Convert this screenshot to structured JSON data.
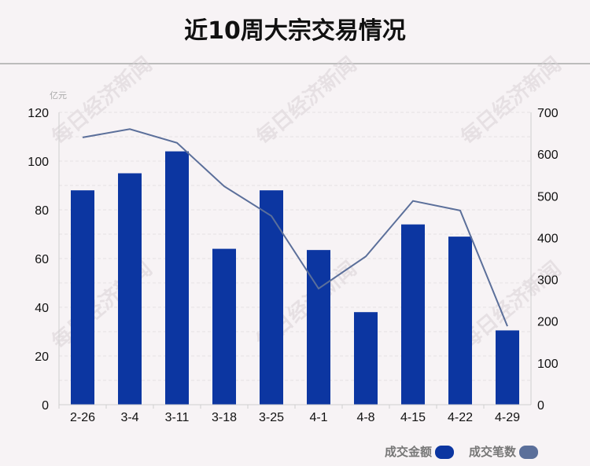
{
  "title": "近10周大宗交易情况",
  "watermark": "每日经济新闻",
  "chart_data": {
    "type": "bar",
    "categories": [
      "2-26",
      "3-4",
      "3-11",
      "3-18",
      "3-25",
      "4-1",
      "4-8",
      "4-15",
      "4-22",
      "4-29"
    ],
    "y_unit": "亿元",
    "ylim": [
      0,
      120
    ],
    "y_ticks": [
      0,
      20,
      40,
      60,
      80,
      100,
      120
    ],
    "y2lim": [
      0,
      700
    ],
    "y2_ticks": [
      0,
      100,
      200,
      300,
      400,
      500,
      600,
      700
    ],
    "grid": true,
    "legend_position": "bottom-right",
    "series": [
      {
        "name": "成交金额",
        "type": "bar",
        "axis": "left",
        "color": "#0c36a1",
        "values": [
          88,
          95,
          104,
          64,
          88,
          63.5,
          38,
          74,
          69,
          30.5
        ]
      },
      {
        "name": "成交笔数",
        "type": "line",
        "axis": "right",
        "color": "#5b6f9a",
        "values": [
          640,
          660,
          627,
          523,
          452,
          278,
          355,
          488,
          465,
          188
        ]
      }
    ]
  }
}
